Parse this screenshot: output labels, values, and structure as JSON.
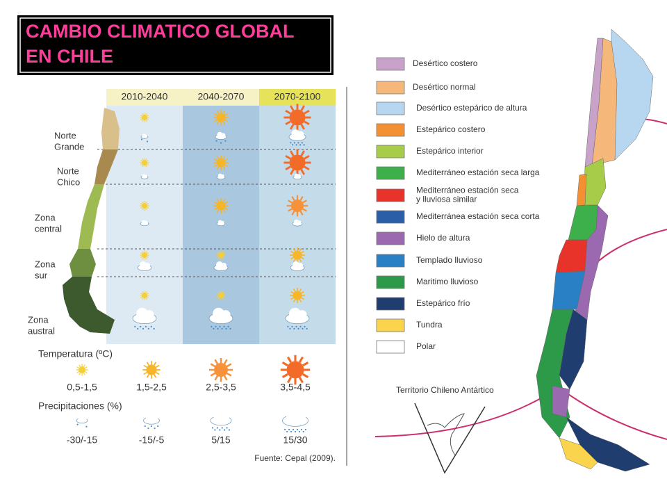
{
  "title": {
    "lines": [
      "CAMBIO CLIMATICO GLOBAL",
      "EN CHILE"
    ]
  },
  "projection_panel": {
    "periods": [
      "2010-2040",
      "2040-2070",
      "2070-2100"
    ],
    "zones": [
      [
        "Norte",
        "Grande"
      ],
      [
        "Norte",
        "Chico"
      ],
      [
        "Zona",
        "central"
      ],
      [
        "Zona",
        "sur"
      ],
      [
        "Zona",
        "austral"
      ]
    ],
    "temperature_title": "Temperatura (ºC)",
    "temperature_ranges": [
      "0,5-1,5",
      "1,5-2,5",
      "2,5-3,5",
      "3,5-4,5"
    ],
    "precipitation_title": "Precipitaciones (%)",
    "precipitation_ranges": [
      "-30/-15",
      "-15/-5",
      "5/15",
      "15/30"
    ],
    "source": "Fuente: Cepal (2009)."
  },
  "climate_map": {
    "legend": [
      {
        "label": [
          "Desértico costero"
        ],
        "color": "#c8a2c8"
      },
      {
        "label": [
          "Desértico normal"
        ],
        "color": "#f5b77a"
      },
      {
        "label": [
          "Desértico estepárico de altura"
        ],
        "color": "#b7d7f0"
      },
      {
        "label": [
          "Estepárico costero"
        ],
        "color": "#f39033"
      },
      {
        "label": [
          "Estepárico interior"
        ],
        "color": "#a6cc4a"
      },
      {
        "label": [
          "Mediterráneo estación seca larga"
        ],
        "color": "#3db04b"
      },
      {
        "label": [
          "Mediterráneo estación seca",
          "y lluviosa similar"
        ],
        "color": "#e8332a"
      },
      {
        "label": [
          "Mediterránea estación seca corta"
        ],
        "color": "#2a5fa8"
      },
      {
        "label": [
          "Hielo de altura"
        ],
        "color": "#9b69b0"
      },
      {
        "label": [
          "Templado lluvioso"
        ],
        "color": "#2a80c4"
      },
      {
        "label": [
          "Maritimo lluvioso"
        ],
        "color": "#2c9a48"
      },
      {
        "label": [
          "Estepárico frío"
        ],
        "color": "#1f3d6e"
      },
      {
        "label": [
          "Tundra"
        ],
        "color": "#f9d44c"
      },
      {
        "label": [
          "Polar"
        ],
        "color": "#ffffff"
      }
    ],
    "antarctic_label": "Territorio Chileno Antártico"
  }
}
